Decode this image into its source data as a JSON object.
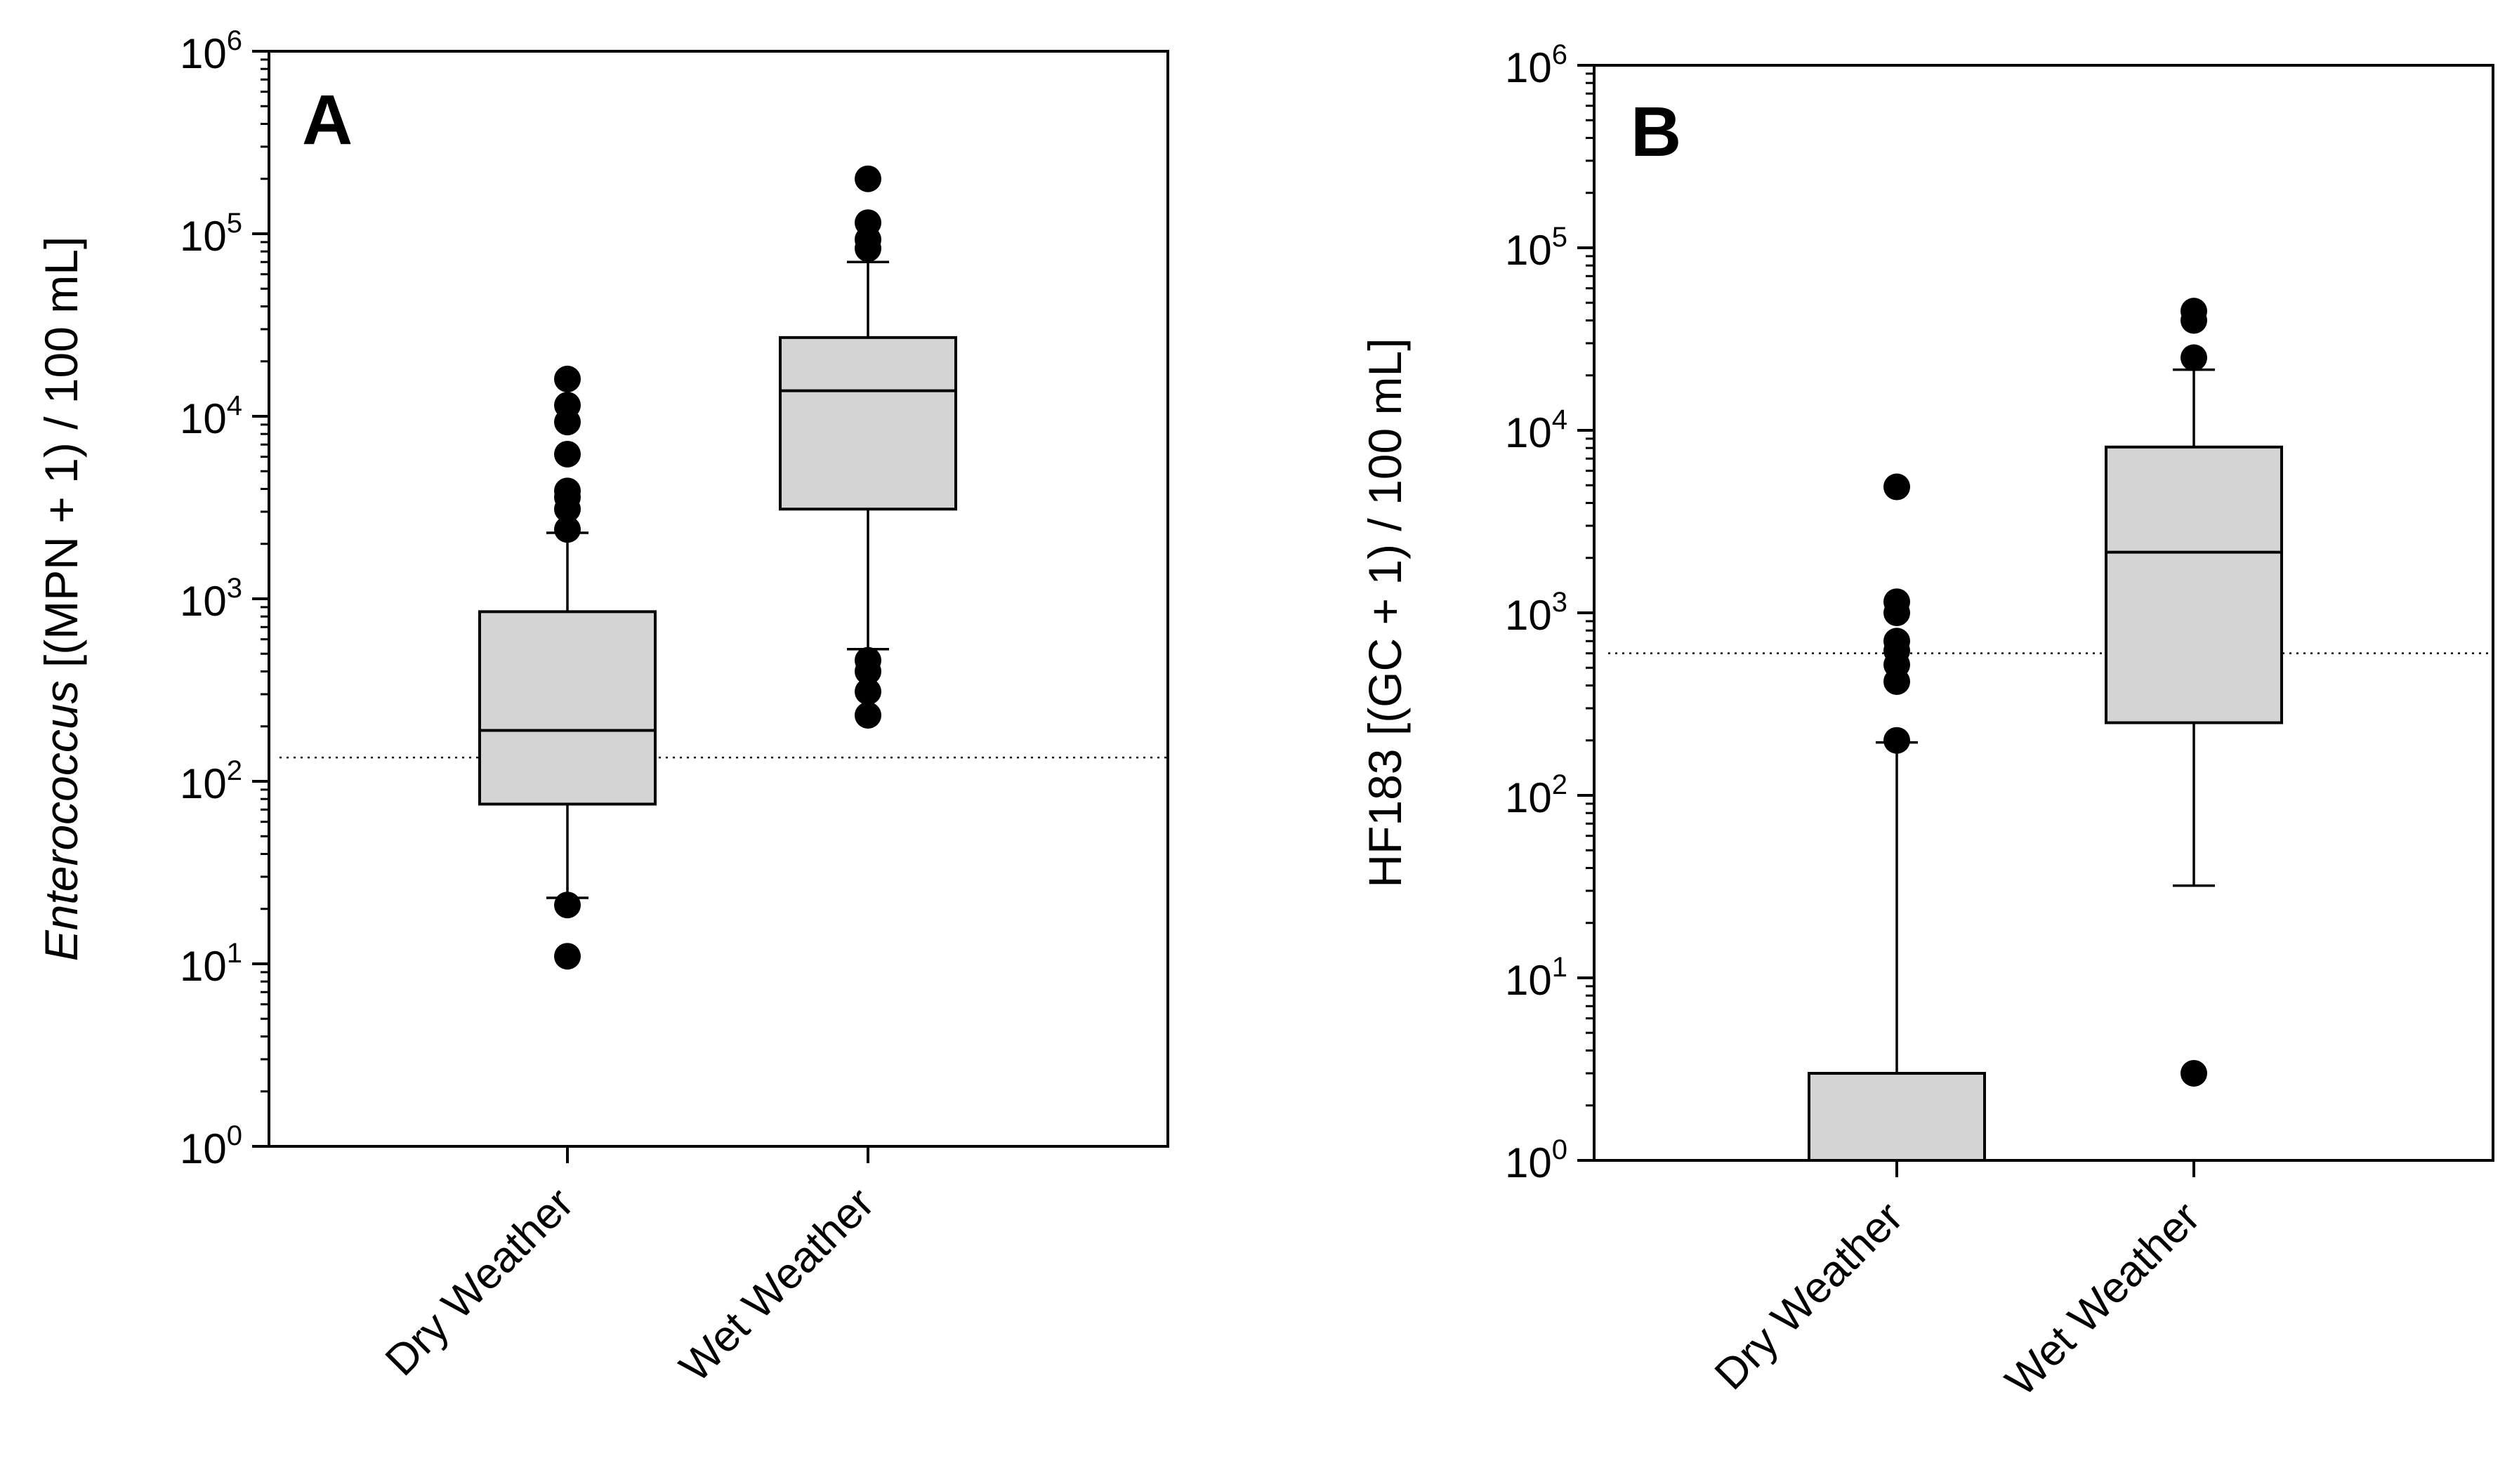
{
  "chart_data": [
    {
      "type": "box",
      "panel_label": "A",
      "ylabel": {
        "italic": "Enterococcus",
        "rest": " [(MPN + 1) / 100 mL]"
      },
      "yscale": "log",
      "ylim": [
        1,
        1000000
      ],
      "ytick_labels": [
        {
          "base": "10",
          "exp": "0",
          "value": 1
        },
        {
          "base": "10",
          "exp": "1",
          "value": 10
        },
        {
          "base": "10",
          "exp": "2",
          "value": 100
        },
        {
          "base": "10",
          "exp": "3",
          "value": 1000
        },
        {
          "base": "10",
          "exp": "4",
          "value": 10000
        },
        {
          "base": "10",
          "exp": "5",
          "value": 100000
        },
        {
          "base": "10",
          "exp": "6",
          "value": 1000000
        }
      ],
      "threshold": 135,
      "categories": [
        "Dry Weather",
        "Wet Weather"
      ],
      "boxes": [
        {
          "name": "Dry Weather",
          "whisker_low": 23,
          "q1": 75,
          "median": 190,
          "q3": 850,
          "whisker_high": 2300,
          "outliers": [
            11,
            21,
            2400,
            3100,
            3600,
            3900,
            6200,
            9300,
            11500,
            16000
          ]
        },
        {
          "name": "Wet Weather",
          "whisker_low": 530,
          "q1": 3100,
          "median": 13800,
          "q3": 27000,
          "whisker_high": 70000,
          "outliers": [
            230,
            310,
            400,
            460,
            83000,
            93000,
            115000,
            200000
          ]
        }
      ]
    },
    {
      "type": "box",
      "panel_label": "B",
      "ylabel": {
        "italic": "",
        "rest": "HF183 [(GC + 1) / 100 mL]"
      },
      "yscale": "log",
      "ylim": [
        1,
        1000000
      ],
      "ytick_labels": [
        {
          "base": "10",
          "exp": "0",
          "value": 1
        },
        {
          "base": "10",
          "exp": "1",
          "value": 10
        },
        {
          "base": "10",
          "exp": "2",
          "value": 100
        },
        {
          "base": "10",
          "exp": "3",
          "value": 1000
        },
        {
          "base": "10",
          "exp": "4",
          "value": 10000
        },
        {
          "base": "10",
          "exp": "5",
          "value": 100000
        },
        {
          "base": "10",
          "exp": "6",
          "value": 1000000
        }
      ],
      "threshold": 600,
      "categories": [
        "Dry Weather",
        "Wet Weather"
      ],
      "boxes": [
        {
          "name": "Dry Weather",
          "whisker_low": 1,
          "q1": 1,
          "median": 1,
          "q3": 3,
          "whisker_high": 195,
          "outliers": [
            200,
            420,
            520,
            620,
            700,
            1000,
            1150,
            4900
          ]
        },
        {
          "name": "Wet Weather",
          "whisker_low": 32,
          "q1": 250,
          "median": 2150,
          "q3": 8100,
          "whisker_high": 21500,
          "outliers": [
            3,
            25000,
            40000,
            45000
          ]
        }
      ]
    }
  ],
  "colors": {
    "box_fill": "#d4d4d4",
    "stroke": "#000000",
    "outlier": "#000000",
    "background": "#ffffff"
  }
}
